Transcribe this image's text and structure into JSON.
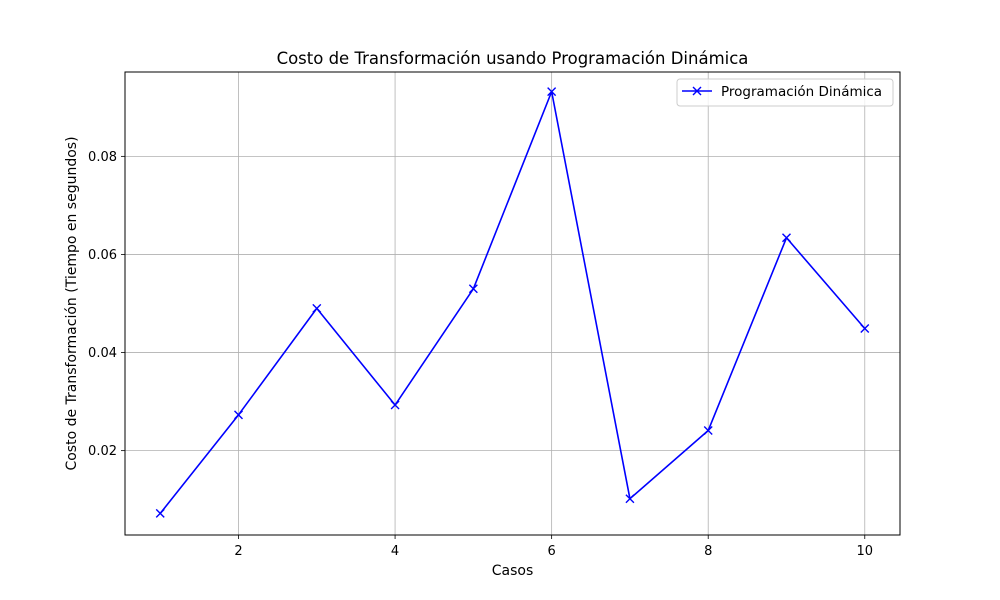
{
  "chart_data": {
    "type": "line",
    "title": "Costo de Transformación usando Programación Dinámica",
    "xlabel": "Casos",
    "ylabel": "Costo de Transformación (Tiempo en segundos)",
    "xlim": [
      0.55,
      10.45
    ],
    "ylim": [
      0.0028,
      0.0972
    ],
    "xticks": [
      2,
      4,
      6,
      8,
      10
    ],
    "xtick_labels": [
      "2",
      "4",
      "6",
      "8",
      "10"
    ],
    "yticks": [
      0.02,
      0.04,
      0.06,
      0.08
    ],
    "ytick_labels": [
      "0.02",
      "0.04",
      "0.06",
      "0.08"
    ],
    "grid": true,
    "legend_position": "top-right",
    "series": [
      {
        "name": "Programación Dinámica",
        "color": "#0000ff",
        "marker": "x",
        "x": [
          1,
          2,
          3,
          4,
          5,
          6,
          7,
          8,
          9,
          10
        ],
        "y": [
          0.0072,
          0.0273,
          0.049,
          0.0293,
          0.053,
          0.0932,
          0.0102,
          0.0241,
          0.0634,
          0.0449
        ]
      }
    ]
  }
}
